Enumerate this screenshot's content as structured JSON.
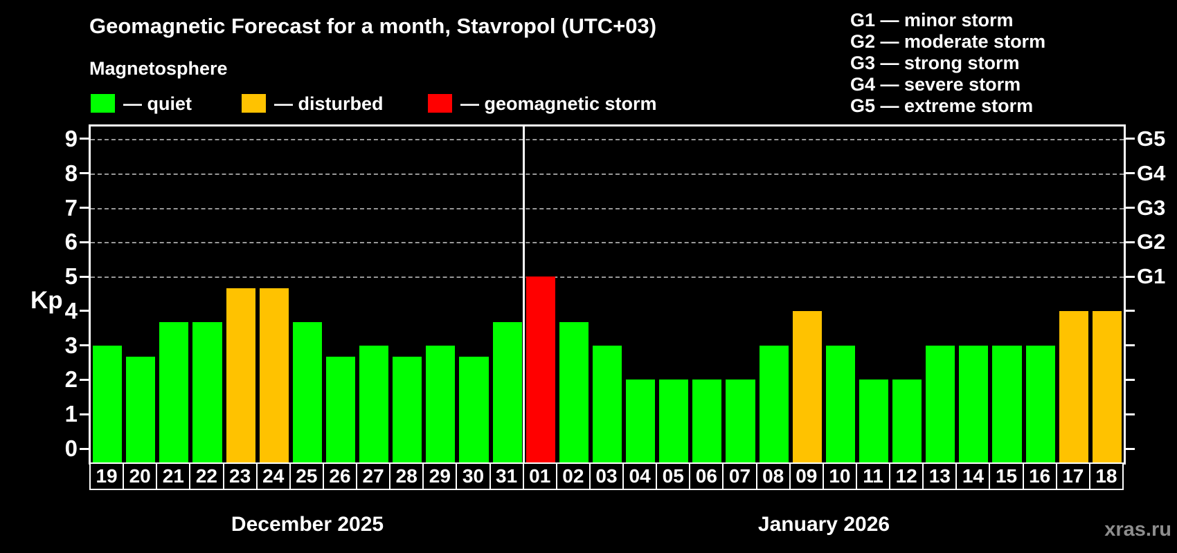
{
  "title": "Geomagnetic Forecast for a month, Stavropol (UTC+03)",
  "subtitle": "Magnetosphere",
  "legend": {
    "items": [
      {
        "label": "— quiet",
        "status": "quiet"
      },
      {
        "label": "— disturbed",
        "status": "disturbed"
      },
      {
        "label": "— geomagnetic storm",
        "status": "storm"
      }
    ]
  },
  "g_legend": {
    "lines": [
      "G1 — minor storm",
      "G2 — moderate storm",
      "G3 — strong storm",
      "G4 — severe storm",
      "G5 — extreme storm"
    ]
  },
  "watermark": {
    "text": "xras.ru"
  },
  "colors": {
    "quiet": "#00ff00",
    "disturbed": "#ffc200",
    "storm": "#ff0000",
    "background": "#000000",
    "grid": "#999999",
    "axis": "#ffffff",
    "watermark": "#8d8d8d"
  },
  "chart_data": {
    "type": "bar",
    "title": "Geomagnetic Forecast for a month, Stavropol (UTC+03)",
    "ylabel": "Kp",
    "ylim": [
      0,
      9.6
    ],
    "yticks": [
      0,
      1,
      2,
      3,
      4,
      5,
      6,
      7,
      8,
      9
    ],
    "grid": "horizontal dashed lines at Kp 5-9 only",
    "legend_position": "top-left",
    "right_axis": [
      {
        "kp": 5,
        "label": "G1"
      },
      {
        "kp": 6,
        "label": "G2"
      },
      {
        "kp": 7,
        "label": "G3"
      },
      {
        "kp": 8,
        "label": "G4"
      },
      {
        "kp": 9,
        "label": "G5"
      }
    ],
    "months": [
      {
        "label": "December 2025",
        "days": [
          {
            "day": "19",
            "kp": 3,
            "status": "quiet"
          },
          {
            "day": "20",
            "kp": 2.67,
            "status": "quiet"
          },
          {
            "day": "21",
            "kp": 3.67,
            "status": "quiet"
          },
          {
            "day": "22",
            "kp": 3.67,
            "status": "quiet"
          },
          {
            "day": "23",
            "kp": 4.67,
            "status": "disturbed"
          },
          {
            "day": "24",
            "kp": 4.67,
            "status": "disturbed"
          },
          {
            "day": "25",
            "kp": 3.67,
            "status": "quiet"
          },
          {
            "day": "26",
            "kp": 2.67,
            "status": "quiet"
          },
          {
            "day": "27",
            "kp": 3,
            "status": "quiet"
          },
          {
            "day": "28",
            "kp": 2.67,
            "status": "quiet"
          },
          {
            "day": "29",
            "kp": 3,
            "status": "quiet"
          },
          {
            "day": "30",
            "kp": 2.67,
            "status": "quiet"
          },
          {
            "day": "31",
            "kp": 3.67,
            "status": "quiet"
          }
        ]
      },
      {
        "label": "January 2026",
        "days": [
          {
            "day": "01",
            "kp": 5,
            "status": "storm"
          },
          {
            "day": "02",
            "kp": 3.67,
            "status": "quiet"
          },
          {
            "day": "03",
            "kp": 3,
            "status": "quiet"
          },
          {
            "day": "04",
            "kp": 2,
            "status": "quiet"
          },
          {
            "day": "05",
            "kp": 2,
            "status": "quiet"
          },
          {
            "day": "06",
            "kp": 2,
            "status": "quiet"
          },
          {
            "day": "07",
            "kp": 2,
            "status": "quiet"
          },
          {
            "day": "08",
            "kp": 3,
            "status": "quiet"
          },
          {
            "day": "09",
            "kp": 4,
            "status": "disturbed"
          },
          {
            "day": "10",
            "kp": 3,
            "status": "quiet"
          },
          {
            "day": "11",
            "kp": 2,
            "status": "quiet"
          },
          {
            "day": "12",
            "kp": 2,
            "status": "quiet"
          },
          {
            "day": "13",
            "kp": 3,
            "status": "quiet"
          },
          {
            "day": "14",
            "kp": 3,
            "status": "quiet"
          },
          {
            "day": "15",
            "kp": 3,
            "status": "quiet"
          },
          {
            "day": "16",
            "kp": 3,
            "status": "quiet"
          },
          {
            "day": "17",
            "kp": 4,
            "status": "disturbed"
          },
          {
            "day": "18",
            "kp": 4,
            "status": "disturbed"
          }
        ]
      }
    ]
  }
}
